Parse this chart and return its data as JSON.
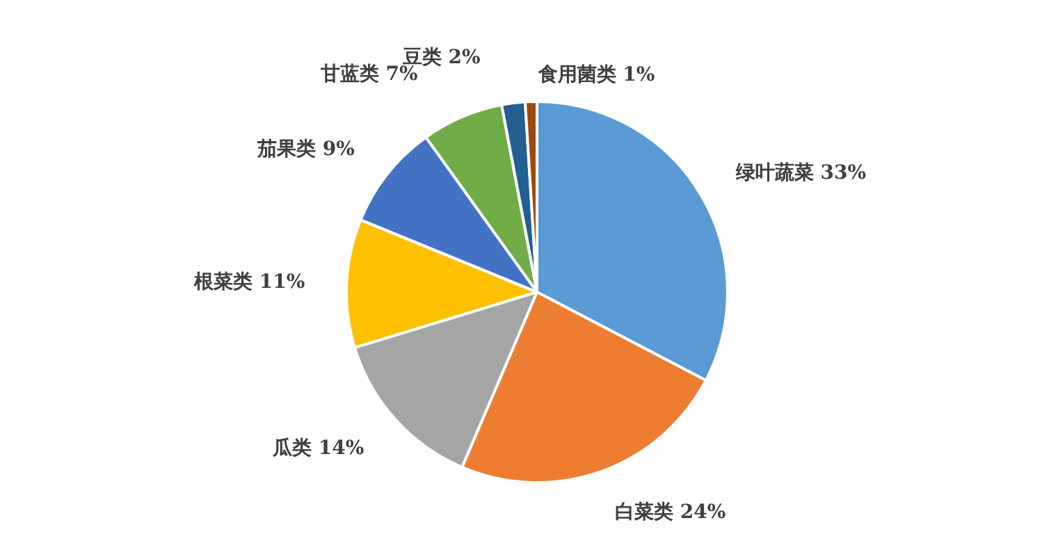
{
  "chart_data": {
    "type": "pie",
    "categories": [
      "绿叶蔬菜",
      "白菜类",
      "瓜类",
      "根菜类",
      "茄果类",
      "甘蓝类",
      "豆类",
      "食用菌类"
    ],
    "values": [
      33,
      24,
      14,
      11,
      9,
      7,
      2,
      1
    ],
    "value_labels": [
      "33%",
      "24%",
      "14%",
      "11%",
      "9%",
      "7%",
      "2%",
      "1%"
    ],
    "colors": [
      "#5b9bd5",
      "#ed7d31",
      "#a5a5a5",
      "#ffc000",
      "#4472c4",
      "#70ad47",
      "#255e91",
      "#9e480e"
    ]
  }
}
